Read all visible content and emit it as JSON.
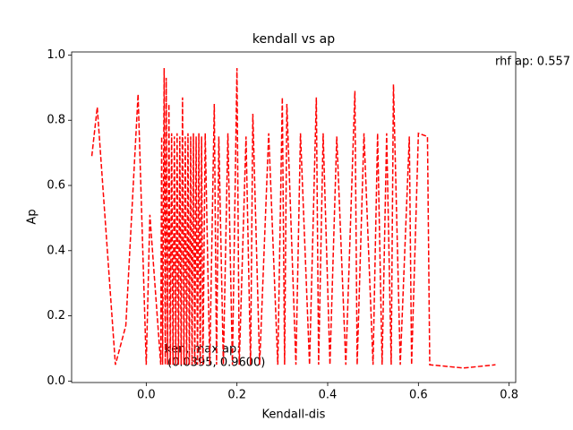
{
  "chart_data": {
    "type": "line",
    "title": "kendall vs ap",
    "x_label": "Kendall-dis",
    "y_label": "Ap",
    "x": [
      -0.12,
      -0.108,
      -0.068,
      -0.045,
      -0.018,
      0.0,
      0.008,
      0.032,
      0.034,
      0.036,
      0.0395,
      0.042,
      0.044,
      0.047,
      0.05,
      0.053,
      0.056,
      0.059,
      0.062,
      0.065,
      0.068,
      0.071,
      0.074,
      0.077,
      0.08,
      0.083,
      0.086,
      0.089,
      0.092,
      0.095,
      0.098,
      0.101,
      0.104,
      0.107,
      0.11,
      0.113,
      0.116,
      0.119,
      0.122,
      0.125,
      0.13,
      0.14,
      0.15,
      0.155,
      0.16,
      0.17,
      0.18,
      0.19,
      0.2,
      0.205,
      0.22,
      0.23,
      0.235,
      0.25,
      0.27,
      0.29,
      0.3,
      0.305,
      0.31,
      0.33,
      0.34,
      0.36,
      0.375,
      0.38,
      0.39,
      0.405,
      0.42,
      0.44,
      0.46,
      0.465,
      0.48,
      0.5,
      0.51,
      0.52,
      0.53,
      0.54,
      0.545,
      0.56,
      0.58,
      0.585,
      0.6,
      0.62,
      0.625,
      0.7,
      0.77
    ],
    "series": [
      {
        "name": "ap",
        "color": "#ff0000",
        "values": [
          0.69,
          0.84,
          0.05,
          0.17,
          0.88,
          0.05,
          0.51,
          0.05,
          0.75,
          0.05,
          0.96,
          0.05,
          0.93,
          0.05,
          0.85,
          0.05,
          0.76,
          0.05,
          0.75,
          0.05,
          0.76,
          0.05,
          0.75,
          0.05,
          0.87,
          0.05,
          0.75,
          0.05,
          0.76,
          0.05,
          0.75,
          0.05,
          0.76,
          0.05,
          0.75,
          0.05,
          0.76,
          0.05,
          0.75,
          0.05,
          0.76,
          0.05,
          0.85,
          0.05,
          0.75,
          0.05,
          0.76,
          0.05,
          0.96,
          0.05,
          0.75,
          0.05,
          0.82,
          0.05,
          0.76,
          0.05,
          0.87,
          0.05,
          0.85,
          0.05,
          0.76,
          0.05,
          0.87,
          0.05,
          0.76,
          0.05,
          0.75,
          0.05,
          0.89,
          0.05,
          0.76,
          0.05,
          0.76,
          0.05,
          0.76,
          0.05,
          0.91,
          0.05,
          0.75,
          0.05,
          0.76,
          0.75,
          0.05,
          0.04,
          0.05
        ]
      }
    ],
    "xlim": [
      -0.1645,
      0.8145
    ],
    "xticks": [
      {
        "value": 0,
        "label": "0.0"
      },
      {
        "value": 0.2,
        "label": "0.2"
      },
      {
        "value": 0.4,
        "label": "0.4"
      },
      {
        "value": 0.6,
        "label": "0.6"
      },
      {
        "value": 0.8,
        "label": "0.8"
      }
    ],
    "ylim": [
      -0.0045,
      1.0095
    ],
    "yticks": [
      {
        "value": 0,
        "label": "0.0"
      },
      {
        "value": 0.2,
        "label": "0.2"
      },
      {
        "value": 0.4,
        "label": "0.4"
      },
      {
        "value": 0.6,
        "label": "0.6"
      },
      {
        "value": 0.8,
        "label": "0.8"
      },
      {
        "value": 1.0,
        "label": "1.0"
      }
    ],
    "annotations": [
      "rhf ap: 0.557",
      "ken, max ap:",
      "(0.0395, 0.9600)"
    ]
  }
}
